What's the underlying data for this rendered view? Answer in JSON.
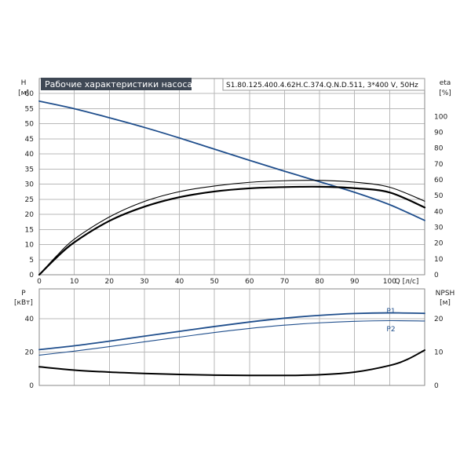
{
  "chart_data": [
    {
      "type": "line",
      "title": "Рабочие характеристики насоса",
      "subtitle": "S1.80.125.400.4.62H.C.374.Q.N.D.511, 3*400 V, 50Hz",
      "y_label": "H",
      "y_unit": "[м]",
      "y2_label": "eta",
      "y2_unit": "[%]",
      "x_label": "Q [л/с]",
      "x_ticks": [
        "0",
        "10",
        "20",
        "30",
        "40",
        "50",
        "60",
        "70",
        "80",
        "90",
        "100"
      ],
      "y_ticks": [
        "0",
        "5",
        "10",
        "15",
        "20",
        "25",
        "30",
        "35",
        "40",
        "45",
        "50",
        "55",
        "60"
      ],
      "y2_ticks": [
        "0",
        "10",
        "20",
        "30",
        "40",
        "50",
        "60",
        "70",
        "80",
        "90",
        "100"
      ],
      "xlim": [
        0,
        110
      ],
      "ylim": [
        0,
        65
      ],
      "y2lim": [
        0,
        124
      ],
      "grid": true,
      "series": [
        {
          "axis": "y",
          "color": "#1f4e8c",
          "x": [
            0,
            10,
            20,
            30,
            40,
            50,
            60,
            70,
            80,
            90,
            100,
            110
          ],
          "values": [
            57.5,
            55,
            52,
            48.8,
            45.3,
            41.6,
            37.9,
            34.3,
            30.8,
            27.3,
            23.2,
            18
          ]
        },
        {
          "axis": "y2",
          "color": "#000000",
          "x": [
            0,
            5,
            10,
            20,
            30,
            40,
            50,
            60,
            70,
            80,
            90,
            100,
            110
          ],
          "values": [
            0,
            11,
            20.5,
            34,
            43,
            49,
            52.6,
            54.6,
            55.4,
            55.6,
            54.7,
            52,
            42.5
          ]
        },
        {
          "axis": "y2",
          "color": "#000000",
          "x": [
            0,
            5,
            10,
            20,
            30,
            40,
            50,
            60,
            70,
            80,
            90,
            100,
            110
          ],
          "values": [
            0,
            12,
            22.5,
            36.5,
            46.3,
            52.5,
            56.1,
            58.4,
            59.4,
            59.6,
            58.5,
            55.3,
            46.5
          ]
        }
      ]
    },
    {
      "type": "line",
      "y_label": "P",
      "y_unit": "[кВт]",
      "y2_label": "NPSH",
      "y2_unit": "[м]",
      "y_ticks": [
        "0",
        "20",
        "40"
      ],
      "y2_ticks": [
        "0",
        "10",
        "20"
      ],
      "xlim": [
        0,
        110
      ],
      "ylim": [
        0,
        58
      ],
      "y2lim": [
        0,
        29
      ],
      "grid": true,
      "series": [
        {
          "name": "P1",
          "axis": "y",
          "color": "#1f4e8c",
          "x": [
            0,
            10,
            20,
            30,
            40,
            50,
            60,
            70,
            80,
            90,
            100,
            110
          ],
          "values": [
            21.5,
            23.8,
            26.6,
            29.6,
            32.5,
            35.4,
            38.1,
            40.4,
            42.1,
            43.2,
            43.6,
            43.3
          ]
        },
        {
          "name": "P2",
          "axis": "y",
          "color": "#1f4e8c",
          "x": [
            0,
            10,
            20,
            30,
            40,
            50,
            60,
            70,
            80,
            90,
            100,
            110
          ],
          "values": [
            18.2,
            20.6,
            23.3,
            26.2,
            29,
            31.8,
            34.2,
            36.2,
            37.6,
            38.5,
            38.9,
            38.7
          ]
        },
        {
          "axis": "y2",
          "color": "#000000",
          "x": [
            0,
            10,
            20,
            30,
            40,
            50,
            60,
            70,
            80,
            90,
            100,
            105,
            110
          ],
          "values": [
            5.6,
            4.6,
            4.0,
            3.6,
            3.3,
            3.1,
            3.0,
            3.0,
            3.2,
            4.0,
            6.0,
            7.8,
            10.6
          ]
        }
      ]
    }
  ]
}
